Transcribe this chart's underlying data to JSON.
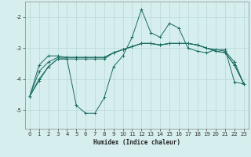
{
  "xlabel": "Humidex (Indice chaleur)",
  "xlim": [
    -0.5,
    23.5
  ],
  "ylim": [
    -5.6,
    -1.5
  ],
  "yticks": [
    -5,
    -4,
    -3,
    -2
  ],
  "xticks": [
    0,
    1,
    2,
    3,
    4,
    5,
    6,
    7,
    8,
    9,
    10,
    11,
    12,
    13,
    14,
    15,
    16,
    17,
    18,
    19,
    20,
    21,
    22,
    23
  ],
  "bg_color": "#d6eeee",
  "grid_color": "#b8d8d8",
  "line_color": "#1a6b60",
  "series1_x": [
    0,
    1,
    2,
    3,
    4,
    5,
    6,
    7,
    8,
    9,
    10,
    11,
    12,
    13,
    14,
    15,
    16,
    17,
    18,
    19,
    20,
    21,
    22,
    23
  ],
  "series1_y": [
    -4.55,
    -4.05,
    -3.6,
    -3.35,
    -3.35,
    -4.85,
    -5.1,
    -5.1,
    -4.6,
    -3.6,
    -3.25,
    -2.65,
    -1.75,
    -2.5,
    -2.65,
    -2.2,
    -2.35,
    -3.0,
    -3.1,
    -3.15,
    -3.05,
    -3.05,
    -4.1,
    -4.15
  ],
  "series2_x": [
    0,
    1,
    2,
    3,
    4,
    5,
    6,
    7,
    8,
    9,
    10,
    11,
    12,
    13,
    14,
    15,
    16,
    17,
    18,
    19,
    20,
    21,
    22,
    23
  ],
  "series2_y": [
    -4.55,
    -4.0,
    -3.6,
    -3.35,
    -3.35,
    -3.35,
    -3.35,
    -3.35,
    -3.35,
    -3.15,
    -3.05,
    -2.95,
    -2.85,
    -2.85,
    -2.9,
    -2.85,
    -2.85,
    -2.85,
    -2.9,
    -3.0,
    -3.05,
    -3.1,
    -3.45,
    -4.15
  ],
  "series3_x": [
    0,
    1,
    2,
    3,
    4,
    5,
    6,
    7,
    8,
    9,
    10,
    11,
    12,
    13,
    14,
    15,
    16,
    17,
    18,
    19,
    20,
    21,
    22,
    23
  ],
  "series3_y": [
    -4.55,
    -3.55,
    -3.25,
    -3.25,
    -3.3,
    -3.3,
    -3.3,
    -3.3,
    -3.3,
    -3.15,
    -3.05,
    -2.95,
    -2.85,
    -2.85,
    -2.9,
    -2.85,
    -2.85,
    -2.85,
    -2.9,
    -3.0,
    -3.1,
    -3.15,
    -3.55,
    -4.15
  ],
  "series4_x": [
    0,
    1,
    2,
    3,
    4,
    5,
    6,
    7,
    8,
    9,
    10,
    11,
    12,
    13,
    14,
    15,
    16,
    17,
    18,
    19,
    20,
    21,
    22,
    23
  ],
  "series4_y": [
    -4.55,
    -3.75,
    -3.45,
    -3.3,
    -3.3,
    -3.3,
    -3.3,
    -3.3,
    -3.3,
    -3.15,
    -3.05,
    -2.95,
    -2.85,
    -2.85,
    -2.9,
    -2.85,
    -2.85,
    -2.85,
    -2.9,
    -3.0,
    -3.1,
    -3.15,
    -3.55,
    -4.15
  ]
}
